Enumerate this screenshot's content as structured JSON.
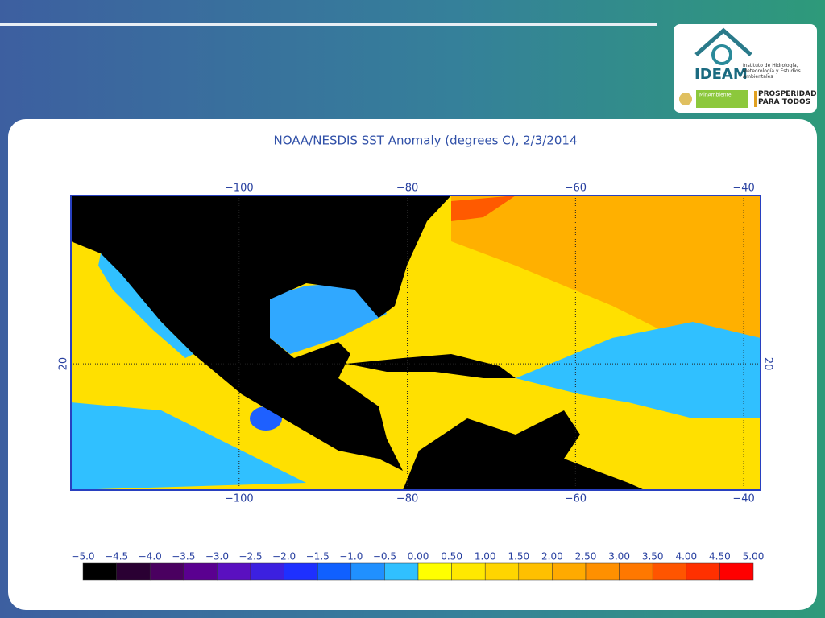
{
  "logo": {
    "name": "IDEAM",
    "institute": "Instituto de Hidrología, Meteorología y Estudios Ambientales",
    "ministry": "MinAmbiente",
    "slogan": "PROSPERIDAD PARA TODOS"
  },
  "map": {
    "title": "NOAA/NESDIS SST Anomaly (degrees C), 2/3/2014",
    "xlim": [
      -120,
      -38
    ],
    "ylim": [
      5,
      40
    ],
    "xticks": [
      {
        "value": -100,
        "label": "−100"
      },
      {
        "value": -80,
        "label": "−80"
      },
      {
        "value": -60,
        "label": "−60"
      },
      {
        "value": -40,
        "label": "−40"
      }
    ],
    "yticks": [
      20
    ]
  },
  "colorbar": {
    "ticks": [
      {
        "value": -5,
        "label": "−5.0"
      },
      {
        "value": -4.5,
        "label": "−4.5"
      },
      {
        "value": -4,
        "label": "−4.0"
      },
      {
        "value": -3.5,
        "label": "−3.5"
      },
      {
        "value": -3,
        "label": "−3.0"
      },
      {
        "value": -2.5,
        "label": "−2.5"
      },
      {
        "value": -2,
        "label": "−2.0"
      },
      {
        "value": -1.5,
        "label": "−1.5"
      },
      {
        "value": -1,
        "label": "−1.0"
      },
      {
        "value": -0.5,
        "label": "−0.5"
      },
      {
        "value": 0,
        "label": "0.00"
      },
      {
        "value": 0.5,
        "label": "0.50"
      },
      {
        "value": 1,
        "label": "1.00"
      },
      {
        "value": 1.5,
        "label": "1.50"
      },
      {
        "value": 2,
        "label": "2.00"
      },
      {
        "value": 2.5,
        "label": "2.50"
      },
      {
        "value": 3,
        "label": "3.00"
      },
      {
        "value": 3.5,
        "label": "3.50"
      },
      {
        "value": 4,
        "label": "4.00"
      },
      {
        "value": 4.5,
        "label": "4.50"
      },
      {
        "value": 5,
        "label": "5.00"
      }
    ],
    "colors": [
      "#000000",
      "#2a0033",
      "#4a0060",
      "#5a0090",
      "#5a10c0",
      "#3c20e0",
      "#1e30ff",
      "#1060ff",
      "#2090ff",
      "#30c0ff",
      "#ffff00",
      "#ffe800",
      "#ffd500",
      "#ffc000",
      "#ffaa00",
      "#ff9000",
      "#ff7800",
      "#ff5500",
      "#ff3000",
      "#ff0000"
    ]
  }
}
